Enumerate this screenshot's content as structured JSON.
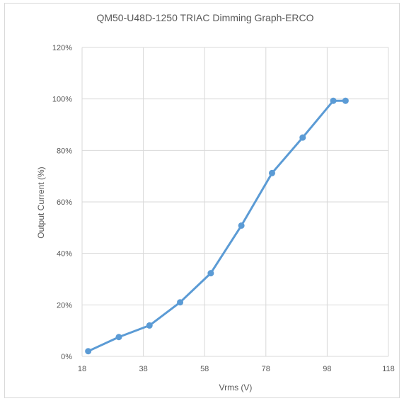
{
  "chart_data": {
    "type": "line",
    "title": "QM50-U48D-1250 TRIAC Dimming Graph-ERCO",
    "xlabel": "Vrms (V)",
    "ylabel": "Output Current (%)",
    "xlim": [
      18,
      118
    ],
    "ylim": [
      0,
      120
    ],
    "x_ticks": [
      "18",
      "38",
      "58",
      "78",
      "98",
      "118"
    ],
    "y_ticks": [
      "0%",
      "20%",
      "40%",
      "60%",
      "80%",
      "100%",
      "120%"
    ],
    "grid": true,
    "legend": "none",
    "series": [
      {
        "color": "#5b9bd5",
        "x": [
          20,
          30,
          40,
          50,
          60,
          70,
          80,
          90,
          100,
          104
        ],
        "y": [
          2,
          7.5,
          12,
          21,
          32.3,
          50.8,
          71.2,
          85,
          99.3,
          99.3
        ]
      }
    ]
  }
}
